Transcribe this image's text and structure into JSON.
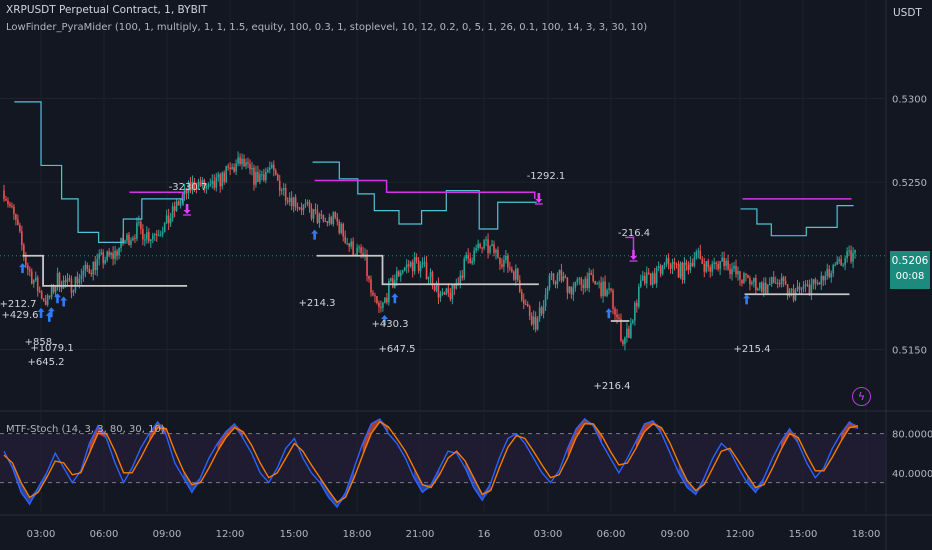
{
  "header": {
    "title": "XRPUSDT Perpetual Contract, 1, BYBIT",
    "strategy": "LowFinder_PyraMider (100, 1, multiply, 1, 1, 1.5, equity, 100, 0.3, 1, stoplevel, 10, 12, 0.2, 0, 5, 1, 26, 0.1, 100, 14, 3, 3, 30, 10)",
    "oscillator": "MTF-Stoch (14, 3, 3, 80, 30, 10)"
  },
  "price_axis": {
    "currency": "USDT",
    "current_price": "0.5206",
    "countdown": "00:08"
  },
  "colors": {
    "background": "#131722",
    "up": "#26a69a",
    "down": "#ef5350",
    "cyan_line": "#4fc3d7",
    "magenta_line": "#d633e8",
    "white_line": "#c8c8c8",
    "entry_arrow": "#2f7cf6",
    "exit_arrow": "#e040fb",
    "stoch_k": "#2962ff",
    "stoch_d": "#f57c00",
    "badge": "#1d8a7e"
  },
  "chart_data": [
    {
      "type": "line",
      "title": "XRPUSDT Perpetual Contract, 1, BYBIT",
      "ylim": [
        0.5115,
        0.5335
      ],
      "y_ticks": [
        "0.5300",
        "0.5250",
        "0.5206",
        "0.5150"
      ],
      "x_ticks": [
        "03:00",
        "06:00",
        "09:00",
        "12:00",
        "15:00",
        "18:00",
        "21:00",
        "16",
        "03:00",
        "06:00",
        "09:00",
        "12:00",
        "15:00",
        "18:00"
      ],
      "price_path": [
        [
          0.0,
          0.5245
        ],
        [
          0.6,
          0.5225
        ],
        [
          1.1,
          0.52
        ],
        [
          1.7,
          0.5185
        ],
        [
          2.1,
          0.5178
        ],
        [
          2.6,
          0.5192
        ],
        [
          3.2,
          0.5188
        ],
        [
          3.9,
          0.5196
        ],
        [
          4.6,
          0.5203
        ],
        [
          5.3,
          0.5206
        ],
        [
          5.8,
          0.5214
        ],
        [
          6.5,
          0.5222
        ],
        [
          7.1,
          0.5218
        ],
        [
          7.9,
          0.5225
        ],
        [
          8.6,
          0.524
        ],
        [
          9.3,
          0.525
        ],
        [
          10.0,
          0.5245
        ],
        [
          10.8,
          0.5255
        ],
        [
          11.5,
          0.5262
        ],
        [
          12.2,
          0.5252
        ],
        [
          12.9,
          0.5258
        ],
        [
          13.6,
          0.5245
        ],
        [
          14.2,
          0.5238
        ],
        [
          14.8,
          0.5233
        ],
        [
          15.5,
          0.5226
        ],
        [
          16.1,
          0.5228
        ],
        [
          16.8,
          0.5212
        ],
        [
          17.5,
          0.5205
        ],
        [
          17.9,
          0.518
        ],
        [
          18.3,
          0.5172
        ],
        [
          18.7,
          0.5186
        ],
        [
          19.3,
          0.5198
        ],
        [
          20.0,
          0.5202
        ],
        [
          20.7,
          0.5195
        ],
        [
          21.3,
          0.518
        ],
        [
          21.8,
          0.5184
        ],
        [
          22.5,
          0.5204
        ],
        [
          23.3,
          0.5212
        ],
        [
          24.0,
          0.5207
        ],
        [
          24.9,
          0.5195
        ],
        [
          25.4,
          0.5175
        ],
        [
          25.9,
          0.5165
        ],
        [
          26.5,
          0.519
        ],
        [
          27.0,
          0.5194
        ],
        [
          27.6,
          0.5186
        ],
        [
          28.3,
          0.5192
        ],
        [
          28.9,
          0.5188
        ],
        [
          29.5,
          0.5182
        ],
        [
          30.1,
          0.5155
        ],
        [
          30.4,
          0.5162
        ],
        [
          31.0,
          0.519
        ],
        [
          31.7,
          0.5194
        ],
        [
          32.3,
          0.5202
        ],
        [
          33.0,
          0.5196
        ],
        [
          33.6,
          0.5207
        ],
        [
          34.3,
          0.5198
        ],
        [
          35.0,
          0.5204
        ],
        [
          35.7,
          0.5193
        ],
        [
          36.4,
          0.519
        ],
        [
          37.0,
          0.5187
        ],
        [
          37.6,
          0.5191
        ],
        [
          38.2,
          0.5183
        ],
        [
          38.9,
          0.5186
        ],
        [
          39.5,
          0.5189
        ],
        [
          40.2,
          0.5195
        ],
        [
          40.8,
          0.5203
        ],
        [
          41.3,
          0.5206
        ]
      ],
      "cyan_stepline": [
        [
          0.5,
          0.5298
        ],
        [
          1.8,
          0.5298
        ],
        [
          1.8,
          0.526
        ],
        [
          2.8,
          0.526
        ],
        [
          2.8,
          0.524
        ],
        [
          3.6,
          0.524
        ],
        [
          3.6,
          0.522
        ],
        [
          4.6,
          0.522
        ],
        [
          4.6,
          0.5214
        ],
        [
          5.8,
          0.5214
        ],
        [
          5.8,
          0.5228
        ],
        [
          6.7,
          0.5228
        ],
        [
          6.7,
          0.524
        ],
        [
          8.7,
          0.524
        ],
        [
          8.7,
          0.5236
        ],
        [
          15.0,
          0.5262
        ],
        [
          16.3,
          0.5262
        ],
        [
          16.3,
          0.5252
        ],
        [
          17.2,
          0.5252
        ],
        [
          17.2,
          0.5243
        ],
        [
          18.0,
          0.5243
        ],
        [
          18.0,
          0.5233
        ],
        [
          19.2,
          0.5233
        ],
        [
          19.2,
          0.5225
        ],
        [
          20.3,
          0.5225
        ],
        [
          20.3,
          0.5233
        ],
        [
          21.5,
          0.5233
        ],
        [
          21.5,
          0.5245
        ],
        [
          23.1,
          0.5245
        ],
        [
          23.1,
          0.5222
        ],
        [
          24.0,
          0.5222
        ],
        [
          24.0,
          0.5238
        ],
        [
          25.9,
          0.5238
        ],
        [
          35.8,
          0.5234
        ],
        [
          36.6,
          0.5234
        ],
        [
          36.6,
          0.5225
        ],
        [
          37.3,
          0.5225
        ],
        [
          37.3,
          0.5218
        ],
        [
          39.0,
          0.5218
        ],
        [
          39.0,
          0.5223
        ],
        [
          40.5,
          0.5223
        ],
        [
          40.5,
          0.5236
        ],
        [
          41.3,
          0.5236
        ]
      ],
      "magenta_line": [
        [
          [
            6.1,
            0.5244
          ],
          [
            8.7,
            0.5244
          ],
          [
            8.7,
            0.524
          ]
        ],
        [
          [
            15.1,
            0.5251
          ],
          [
            18.6,
            0.5251
          ],
          [
            18.6,
            0.5244
          ],
          [
            25.8,
            0.5244
          ],
          [
            25.8,
            0.524
          ]
        ],
        [
          [
            30.2,
            0.5217
          ],
          [
            30.6,
            0.5217
          ],
          [
            30.6,
            0.5209
          ]
        ],
        [
          [
            35.9,
            0.524
          ],
          [
            41.2,
            0.524
          ]
        ]
      ],
      "white_stop_line": [
        [
          [
            0.9,
            0.5206
          ],
          [
            1.9,
            0.5206
          ],
          [
            1.9,
            0.5188
          ],
          [
            8.9,
            0.5188
          ]
        ],
        [
          [
            15.2,
            0.5206
          ],
          [
            18.4,
            0.5206
          ],
          [
            18.4,
            0.5189
          ],
          [
            26.0,
            0.5189
          ]
        ],
        [
          [
            29.5,
            0.5167
          ],
          [
            30.4,
            0.5167
          ]
        ],
        [
          [
            36.0,
            0.5183
          ],
          [
            41.1,
            0.5183
          ]
        ]
      ],
      "entries": [
        {
          "x": 0.9,
          "label": ""
        },
        {
          "x": 1.8,
          "label": "+212.7"
        },
        {
          "x": 2.2,
          "label": "+429.6"
        },
        {
          "x": 2.6,
          "label": "+858."
        },
        {
          "x": 2.9,
          "label": "+1079.1"
        },
        {
          "x": 2.3,
          "label": "+645.2"
        },
        {
          "x": 15.1,
          "label": "+214.3"
        },
        {
          "x": 18.5,
          "label": "+430.3"
        },
        {
          "x": 19.0,
          "label": "+647.5"
        },
        {
          "x": 29.4,
          "label": "+216.4"
        },
        {
          "x": 36.1,
          "label": "+215.4"
        }
      ],
      "exits": [
        {
          "x": 8.9,
          "label": "-3230.7"
        },
        {
          "x": 26.0,
          "label": "-1292.1"
        },
        {
          "x": 30.6,
          "label": "-216.4"
        }
      ]
    },
    {
      "type": "line",
      "title": "MTF-Stoch (14, 3, 3, 80, 30, 10)",
      "ylim": [
        0,
        100
      ],
      "y_ticks": [
        "80.0000",
        "40.0000"
      ],
      "bands": [
        80,
        30
      ],
      "series": [
        {
          "values": [
            62,
            45,
            20,
            8,
            25,
            40,
            60,
            45,
            30,
            42,
            70,
            88,
            75,
            50,
            30,
            45,
            65,
            80,
            92,
            78,
            50,
            35,
            20,
            35,
            55,
            70,
            82,
            90,
            75,
            60,
            40,
            30,
            45,
            65,
            75,
            55,
            40,
            30,
            15,
            5,
            20,
            45,
            70,
            90,
            95,
            80,
            70,
            55,
            35,
            20,
            28,
            45,
            62,
            60,
            45,
            25,
            12,
            30,
            55,
            75,
            80,
            70,
            55,
            40,
            30,
            42,
            65,
            85,
            95,
            88,
            70,
            55,
            40,
            55,
            72,
            90,
            93,
            80,
            60,
            40,
            25,
            18,
            35,
            55,
            70,
            62,
            45,
            30,
            20,
            35,
            55,
            72,
            85,
            70,
            50,
            35,
            45,
            65,
            80,
            92,
            85
          ]
        },
        {
          "values": [
            58,
            50,
            30,
            15,
            20,
            35,
            52,
            50,
            38,
            40,
            60,
            80,
            80,
            62,
            40,
            40,
            55,
            72,
            86,
            85,
            62,
            42,
            28,
            30,
            45,
            62,
            76,
            86,
            82,
            68,
            50,
            35,
            40,
            55,
            70,
            62,
            48,
            35,
            22,
            10,
            15,
            35,
            58,
            80,
            92,
            87,
            75,
            62,
            45,
            28,
            25,
            38,
            55,
            62,
            52,
            35,
            18,
            22,
            45,
            66,
            78,
            75,
            62,
            48,
            35,
            38,
            55,
            76,
            90,
            90,
            78,
            62,
            48,
            50,
            65,
            82,
            90,
            86,
            70,
            50,
            32,
            22,
            28,
            45,
            62,
            65,
            52,
            38,
            25,
            28,
            45,
            64,
            80,
            76,
            58,
            42,
            42,
            56,
            72,
            86,
            88
          ]
        }
      ]
    }
  ]
}
